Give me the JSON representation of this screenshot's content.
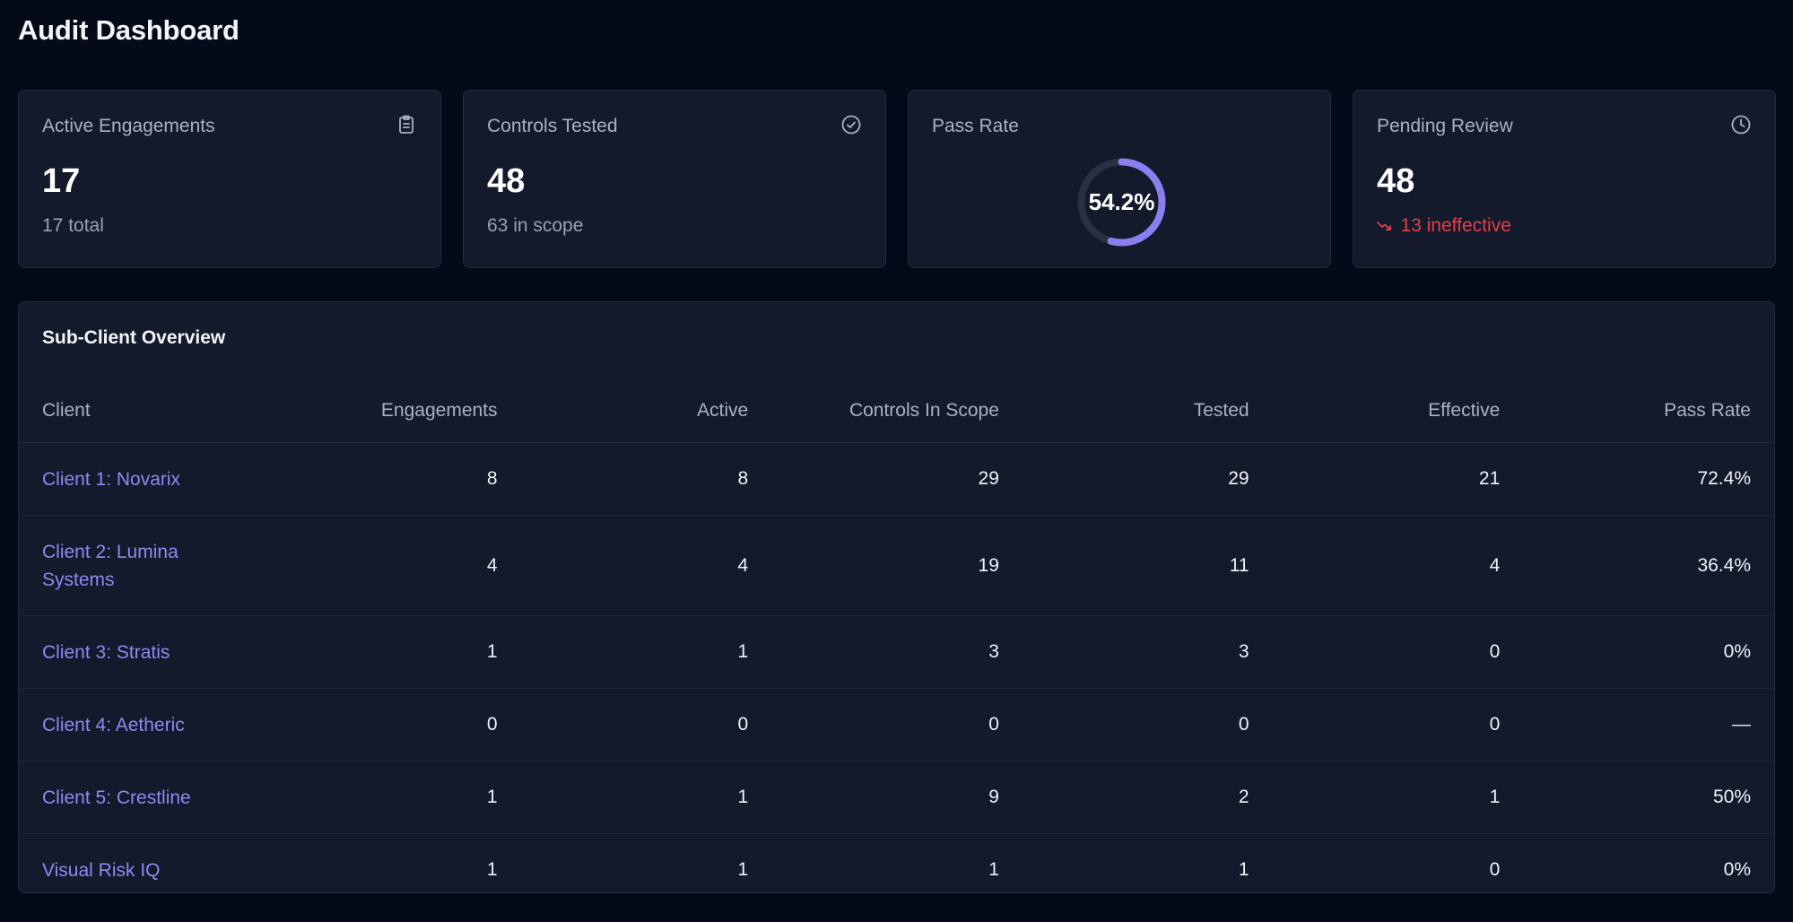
{
  "page": {
    "title": "Audit Dashboard"
  },
  "stats": {
    "active_engagements": {
      "label": "Active Engagements",
      "value": "17",
      "sub": "17 total",
      "icon": "clipboard-icon"
    },
    "controls_tested": {
      "label": "Controls Tested",
      "value": "48",
      "sub": "63 in scope",
      "icon": "check-circle-icon"
    },
    "pass_rate": {
      "label": "Pass Rate",
      "value": "54.2%",
      "percent": 54.2,
      "accent": "#8b7ff0"
    },
    "pending_review": {
      "label": "Pending Review",
      "value": "48",
      "sub": "13 ineffective",
      "sub_color": "#e53e4c",
      "icon": "clock-icon"
    }
  },
  "table": {
    "title": "Sub-Client Overview",
    "columns": {
      "client": "Client",
      "engagements": "Engagements",
      "active": "Active",
      "controls_in_scope": "Controls In Scope",
      "tested": "Tested",
      "effective": "Effective",
      "pass_rate": "Pass Rate"
    },
    "rows": [
      {
        "client": "Client 1: Novarix",
        "engagements": "8",
        "active": "8",
        "controls_in_scope": "29",
        "tested": "29",
        "effective": "21",
        "pass_rate": "72.4%"
      },
      {
        "client": "Client 2: Lumina Systems",
        "engagements": "4",
        "active": "4",
        "controls_in_scope": "19",
        "tested": "11",
        "effective": "4",
        "pass_rate": "36.4%"
      },
      {
        "client": "Client 3: Stratis",
        "engagements": "1",
        "active": "1",
        "controls_in_scope": "3",
        "tested": "3",
        "effective": "0",
        "pass_rate": "0%"
      },
      {
        "client": "Client 4: Aetheric",
        "engagements": "0",
        "active": "0",
        "controls_in_scope": "0",
        "tested": "0",
        "effective": "0",
        "pass_rate": "—"
      },
      {
        "client": "Client 5: Crestline",
        "engagements": "1",
        "active": "1",
        "controls_in_scope": "9",
        "tested": "2",
        "effective": "1",
        "pass_rate": "50%"
      },
      {
        "client": "Visual Risk IQ",
        "engagements": "1",
        "active": "1",
        "controls_in_scope": "1",
        "tested": "1",
        "effective": "0",
        "pass_rate": "0%"
      }
    ]
  },
  "colors": {
    "background": "#050a18",
    "card": "#121a2b",
    "link": "#8f89f2",
    "negative": "#e53e4c"
  }
}
